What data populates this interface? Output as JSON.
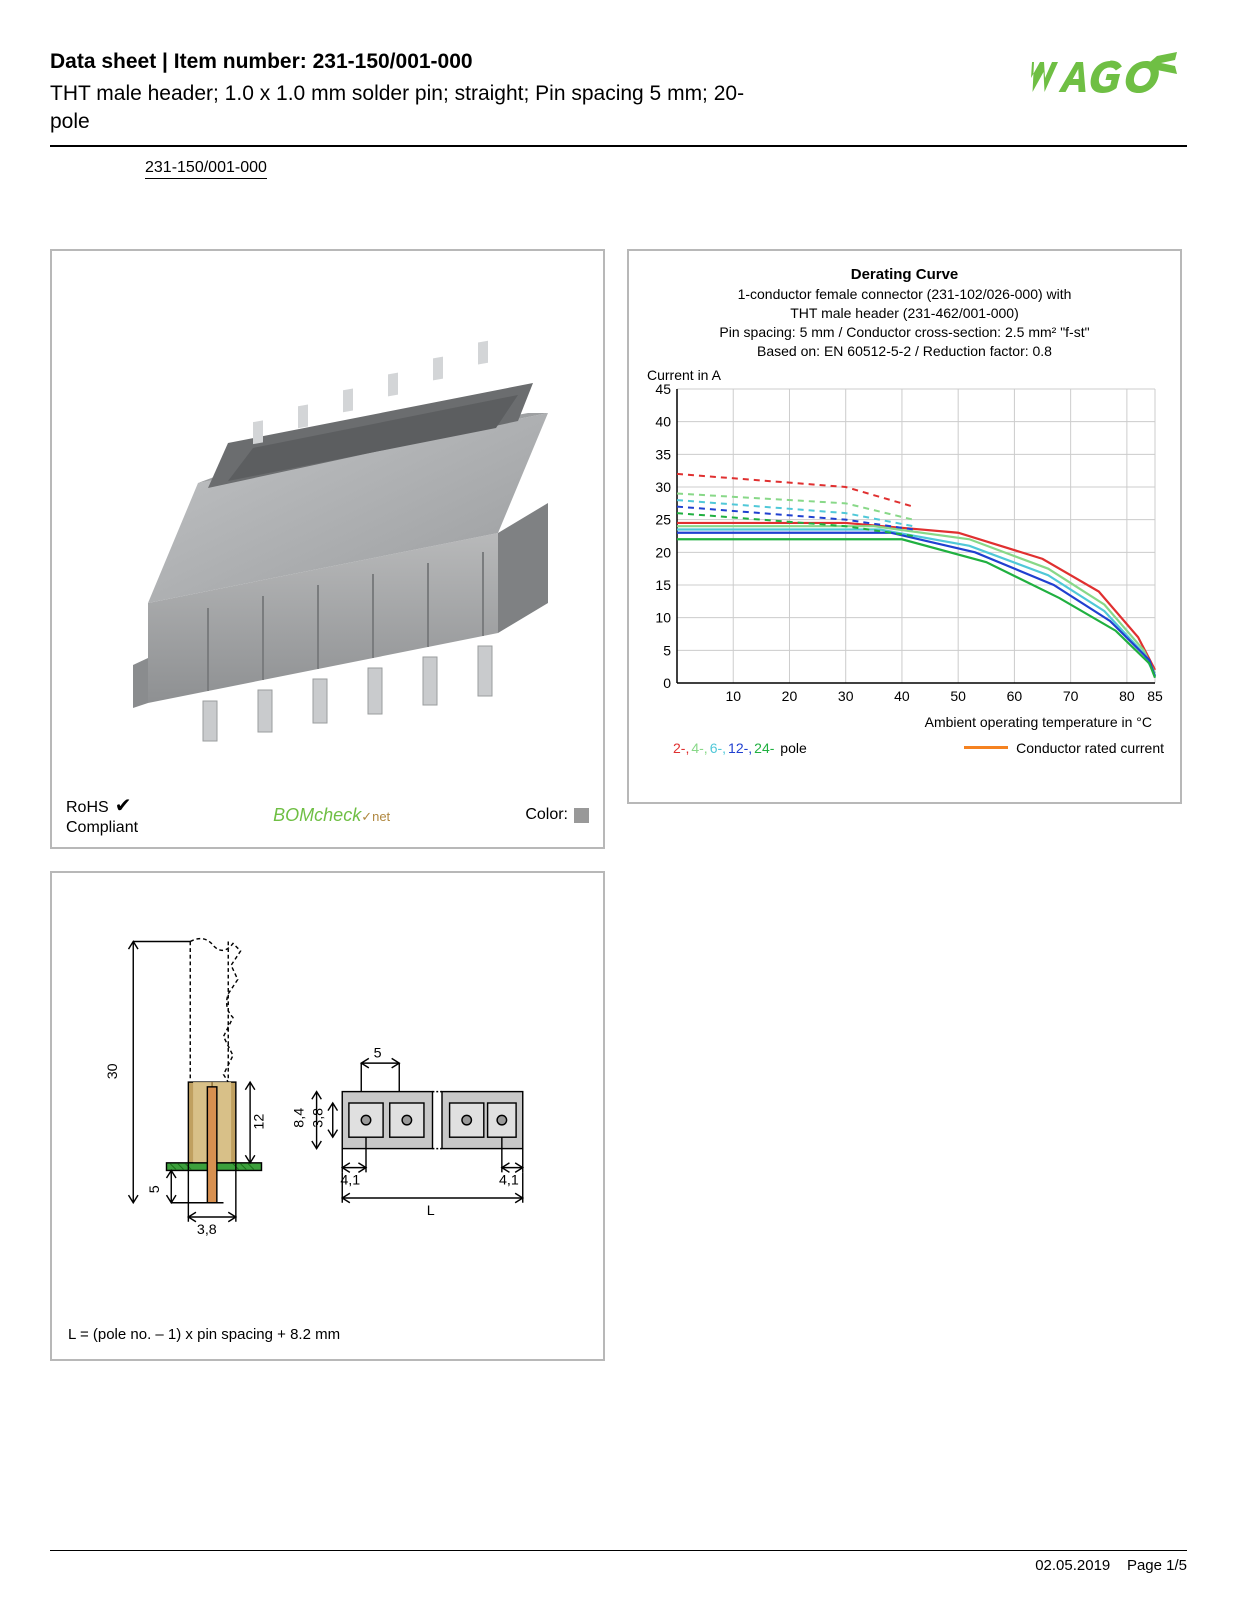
{
  "header": {
    "title_prefix": "Data sheet  |  Item number: ",
    "item_number": "231-150/001-000",
    "subtitle": "THT male header; 1.0 x 1.0 mm solder pin; straight; Pin spacing 5 mm; 20-pole",
    "part_link": "231-150/001-000",
    "logo_color": "#6fbf44"
  },
  "compliance": {
    "rohs_line1": "RoHS",
    "rohs_line2": "Compliant",
    "bomcheck": "BOMcheck",
    "bomcheck_suffix": "✓net",
    "color_label": "Color:",
    "color_swatch": "#999999"
  },
  "chart": {
    "title": "Derating Curve",
    "sub1": "1-conductor female connector (231-102/026-000) with",
    "sub2": "THT male header (231-462/001-000)",
    "sub3": "Pin spacing: 5 mm / Conductor cross-section: 2.5 mm² \"f-st\"",
    "sub4": "Based on: EN 60512-5-2 / Reduction factor: 0.8",
    "ylabel": "Current in A",
    "xlabel": "Ambient operating temperature in °C",
    "ylim": [
      0,
      45
    ],
    "ytick_step": 5,
    "xlim": [
      0,
      85
    ],
    "xticks": [
      10,
      20,
      30,
      40,
      50,
      60,
      70,
      80,
      85
    ],
    "grid_color": "#cccccc",
    "background": "#ffffff",
    "conductor_color": "#f58220",
    "series": [
      {
        "name": "2-pole",
        "color": "#e03030",
        "solid": [
          [
            0,
            24.5
          ],
          [
            30,
            24.5
          ],
          [
            50,
            23
          ],
          [
            65,
            19
          ],
          [
            75,
            14
          ],
          [
            82,
            7
          ],
          [
            85,
            2
          ]
        ],
        "dashed": [
          [
            0,
            32
          ],
          [
            30,
            30
          ],
          [
            42,
            27
          ]
        ]
      },
      {
        "name": "4-pole",
        "color": "#88d888",
        "solid": [
          [
            0,
            24
          ],
          [
            35,
            24
          ],
          [
            52,
            22
          ],
          [
            66,
            17.5
          ],
          [
            76,
            12
          ],
          [
            83,
            5
          ],
          [
            85,
            1.5
          ]
        ],
        "dashed": [
          [
            0,
            29
          ],
          [
            30,
            27.5
          ],
          [
            42,
            25
          ]
        ]
      },
      {
        "name": "6-pole",
        "color": "#50c8d8",
        "solid": [
          [
            0,
            23.5
          ],
          [
            36,
            23.5
          ],
          [
            52,
            21
          ],
          [
            66,
            16.5
          ],
          [
            76,
            11
          ],
          [
            83,
            4.5
          ],
          [
            85,
            1.2
          ]
        ],
        "dashed": [
          [
            0,
            28
          ],
          [
            30,
            26
          ],
          [
            42,
            24
          ]
        ]
      },
      {
        "name": "12-pole",
        "color": "#2040d0",
        "solid": [
          [
            0,
            23
          ],
          [
            38,
            23
          ],
          [
            53,
            20
          ],
          [
            67,
            15
          ],
          [
            77,
            9.5
          ],
          [
            84,
            3.5
          ],
          [
            85,
            1
          ]
        ],
        "dashed": [
          [
            0,
            27
          ],
          [
            30,
            25
          ],
          [
            42,
            23.5
          ]
        ]
      },
      {
        "name": "24-pole",
        "color": "#20b040",
        "solid": [
          [
            0,
            22
          ],
          [
            40,
            22
          ],
          [
            55,
            18.5
          ],
          [
            68,
            13
          ],
          [
            78,
            8
          ],
          [
            84,
            3
          ],
          [
            85,
            0.8
          ]
        ],
        "dashed": [
          [
            0,
            26
          ],
          [
            30,
            24
          ],
          [
            42,
            22.5
          ]
        ]
      }
    ],
    "legend_poles": [
      {
        "label": "2-,",
        "color": "#e03030"
      },
      {
        "label": "4-,",
        "color": "#88d888"
      },
      {
        "label": "6-,",
        "color": "#50c8d8"
      },
      {
        "label": "12-,",
        "color": "#2040d0"
      },
      {
        "label": "24-",
        "color": "#20b040"
      },
      {
        "label": " pole",
        "color": "#000000"
      }
    ],
    "legend_conductor": "Conductor rated current"
  },
  "drawing": {
    "dims": {
      "height_total": "30",
      "body_h": "12",
      "pin_depth": "5",
      "pin_w": "3,8",
      "top_h": "8,4",
      "top_inner": "3,8",
      "spacing": "5",
      "side": "4,1",
      "length": "L"
    },
    "note": "L = (pole no. – 1) x pin spacing + 8.2 mm"
  },
  "footer": {
    "date": "02.05.2019",
    "page": "Page 1/5"
  }
}
